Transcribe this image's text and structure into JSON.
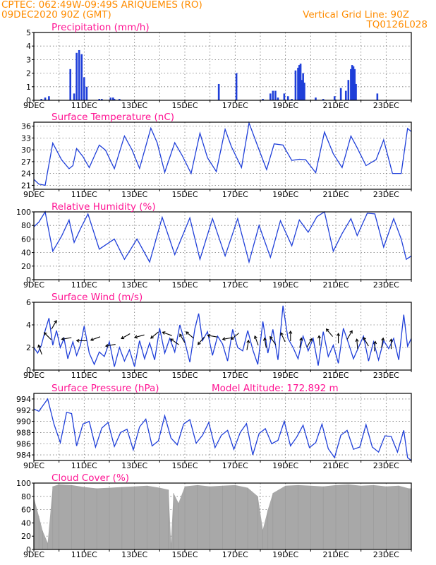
{
  "header": {
    "line1": "CPTEC:   062:49W-09:49S   ARIQUEMES (RO)",
    "line2": "09DEC2020 90Z (GMT)",
    "grid_note": "Vertical Grid Line: 90Z",
    "code": "TQ0126L028"
  },
  "colors": {
    "header": "#ff8c00",
    "title": "#ff1493",
    "series": "#1f3fd9",
    "cloud": "#a8a8a8",
    "arrow": "#000000"
  },
  "chart_data": [
    {
      "type": "bar",
      "title": "Precipitation (mm/h)",
      "xlim_days": [
        9,
        24.0
      ],
      "ylim": [
        0,
        5
      ],
      "yticks": [
        0,
        1,
        2,
        3,
        4,
        5
      ],
      "grid": true,
      "x_labels": [
        "9DEC",
        "11DEC",
        "13DEC",
        "15DEC",
        "17DEC",
        "19DEC",
        "21DEC",
        "23DEC"
      ],
      "x": [
        9.3,
        9.45,
        9.6,
        10.45,
        10.6,
        10.7,
        10.8,
        10.9,
        11.0,
        11.1,
        11.6,
        11.7,
        12.05,
        12.15,
        12.2,
        12.4,
        16.35,
        17.05,
        18.1,
        18.4,
        18.5,
        18.6,
        18.7,
        18.95,
        19.1,
        19.25,
        19.4,
        19.5,
        19.55,
        19.6,
        19.65,
        19.7,
        19.75,
        20.2,
        20.5,
        20.95,
        21.2,
        21.4,
        21.5,
        21.6,
        21.65,
        21.7,
        21.75,
        21.8,
        22.65
      ],
      "y": [
        0.1,
        0.2,
        0.3,
        2.3,
        0.5,
        3.5,
        3.7,
        3.4,
        1.7,
        1.0,
        0.1,
        0.1,
        0.2,
        0.2,
        0.1,
        0.1,
        1.2,
        2.0,
        0.1,
        0.5,
        0.7,
        0.7,
        0.2,
        0.5,
        0.3,
        0.1,
        2.2,
        2.4,
        2.6,
        2.7,
        1.5,
        2.0,
        1.3,
        0.2,
        0.1,
        0.3,
        0.9,
        0.7,
        1.5,
        2.3,
        2.6,
        2.5,
        2.3,
        1.2,
        0.5
      ]
    },
    {
      "type": "line",
      "title": "Surface Temperature (nC)",
      "xlim_days": [
        9,
        24.0
      ],
      "ylim": [
        20,
        37
      ],
      "yticks": [
        21,
        24,
        27,
        30,
        33,
        36
      ],
      "grid": true,
      "x_labels": [
        "9DEC",
        "11DEC",
        "13DEC",
        "15DEC",
        "17DEC",
        "19DEC",
        "21DEC",
        "23DEC"
      ],
      "x": [
        9.0,
        9.2,
        9.45,
        9.75,
        10.1,
        10.4,
        10.55,
        10.7,
        10.95,
        11.2,
        11.6,
        11.85,
        12.2,
        12.6,
        12.9,
        13.2,
        13.65,
        13.9,
        14.2,
        14.6,
        14.9,
        15.25,
        15.6,
        15.9,
        16.25,
        16.6,
        16.85,
        17.25,
        17.55,
        17.95,
        18.25,
        18.55,
        18.9,
        19.25,
        19.55,
        19.8,
        20.2,
        20.55,
        20.9,
        21.25,
        21.6,
        21.85,
        22.2,
        22.6,
        22.9,
        23.25,
        23.6,
        23.85,
        24.0
      ],
      "y": [
        22.5,
        21.3,
        21.0,
        31.7,
        27.5,
        25.2,
        26.0,
        30.3,
        28.3,
        25.5,
        31.2,
        29.9,
        25.2,
        33.5,
        30.0,
        25.3,
        35.5,
        31.8,
        24.3,
        31.8,
        28.5,
        24.0,
        34.2,
        28.0,
        24.5,
        35.2,
        30.8,
        25.5,
        36.8,
        30.0,
        25.0,
        31.5,
        31.2,
        27.3,
        27.6,
        27.5,
        24.2,
        34.5,
        29.0,
        25.5,
        33.5,
        30.5,
        26.0,
        27.5,
        32.5,
        24.0,
        24.0,
        35.4,
        34.6
      ]
    },
    {
      "type": "line",
      "title": "Relative Humidity (%)",
      "xlim_days": [
        9,
        24.0
      ],
      "ylim": [
        0,
        100
      ],
      "yticks": [
        0,
        20,
        40,
        60,
        80,
        100
      ],
      "grid": true,
      "x_labels": [
        "9DEC",
        "11DEC",
        "13DEC",
        "15DEC",
        "17DEC",
        "19DEC",
        "21DEC",
        "23DEC"
      ],
      "x": [
        9.0,
        9.2,
        9.45,
        9.75,
        10.1,
        10.4,
        10.6,
        10.85,
        11.15,
        11.6,
        12.2,
        12.6,
        13.1,
        13.6,
        14.1,
        14.6,
        15.2,
        15.6,
        16.1,
        16.6,
        17.1,
        17.55,
        17.95,
        18.4,
        18.8,
        19.25,
        19.55,
        19.9,
        20.25,
        20.55,
        20.9,
        21.25,
        21.6,
        21.85,
        22.25,
        22.55,
        22.9,
        23.3,
        23.6,
        23.8,
        24.0
      ],
      "y": [
        78,
        85,
        100,
        42,
        64,
        88,
        55,
        75,
        97,
        45,
        60,
        30,
        60,
        26,
        92,
        37,
        91,
        30,
        90,
        35,
        90,
        26,
        80,
        33,
        87,
        50,
        88,
        70,
        93,
        100,
        42,
        68,
        90,
        65,
        98,
        97,
        48,
        90,
        60,
        30,
        35
      ]
    },
    {
      "type": "line",
      "title": "Surface Wind (m/s)",
      "xlim_days": [
        9,
        24.0
      ],
      "ylim": [
        0,
        6
      ],
      "yticks": [
        0,
        2,
        4,
        6
      ],
      "grid": true,
      "x_labels": [
        "9DEC",
        "11DEC",
        "13DEC",
        "15DEC",
        "17DEC",
        "19DEC",
        "21DEC",
        "23DEC"
      ],
      "x": [
        9.0,
        9.15,
        9.3,
        9.45,
        9.6,
        9.75,
        9.9,
        10.05,
        10.2,
        10.35,
        10.55,
        10.7,
        10.85,
        11.0,
        11.2,
        11.4,
        11.6,
        11.8,
        12.0,
        12.2,
        12.4,
        12.6,
        12.8,
        13.0,
        13.2,
        13.4,
        13.6,
        13.8,
        14.0,
        14.2,
        14.4,
        14.6,
        14.8,
        15.0,
        15.2,
        15.4,
        15.55,
        15.7,
        15.9,
        16.1,
        16.3,
        16.5,
        16.7,
        16.9,
        17.1,
        17.3,
        17.5,
        17.7,
        17.9,
        18.1,
        18.3,
        18.5,
        18.7,
        18.9,
        19.1,
        19.3,
        19.5,
        19.7,
        19.9,
        20.1,
        20.3,
        20.5,
        20.7,
        20.9,
        21.1,
        21.3,
        21.5,
        21.7,
        21.9,
        22.1,
        22.3,
        22.5,
        22.7,
        22.9,
        23.1,
        23.3,
        23.5,
        23.7,
        23.85,
        24.0
      ],
      "y": [
        2.0,
        1.5,
        2.2,
        3.5,
        4.6,
        2.2,
        3.5,
        2.0,
        2.8,
        1.0,
        2.5,
        1.3,
        2.2,
        3.9,
        1.5,
        0.5,
        1.6,
        1.2,
        2.5,
        0.3,
        2.0,
        0.8,
        1.8,
        0.3,
        2.6,
        1.0,
        2.4,
        0.9,
        3.7,
        1.5,
        2.8,
        1.6,
        4.0,
        2.5,
        0.7,
        3.7,
        5.0,
        2.6,
        3.4,
        1.3,
        3.0,
        2.3,
        0.8,
        3.6,
        2.0,
        1.7,
        3.5,
        1.8,
        0.5,
        4.3,
        1.5,
        3.6,
        0.9,
        5.7,
        2.8,
        2.0,
        1.0,
        3.0,
        1.7,
        2.8,
        0.4,
        3.4,
        1.2,
        2.2,
        0.6,
        3.7,
        2.4,
        1.0,
        2.0,
        3.0,
        0.8,
        2.5,
        0.9,
        2.6,
        1.9,
        2.8,
        0.9,
        4.9,
        2.1,
        2.8
      ]
    },
    {
      "type": "line",
      "title": "Surface Pressure (hPa)",
      "subtitle": "Model Altitude: 172.892  m",
      "xlim_days": [
        9,
        24.0
      ],
      "ylim": [
        983,
        995
      ],
      "yticks": [
        984,
        986,
        988,
        990,
        992,
        994
      ],
      "grid": true,
      "x_labels": [
        "9DEC",
        "11DEC",
        "13DEC",
        "15DEC",
        "17DEC",
        "19DEC",
        "21DEC",
        "23DEC"
      ],
      "x": [
        9.0,
        9.2,
        9.55,
        9.8,
        10.05,
        10.3,
        10.5,
        10.7,
        10.95,
        11.2,
        11.45,
        11.7,
        11.95,
        12.2,
        12.45,
        12.7,
        12.95,
        13.2,
        13.45,
        13.7,
        13.95,
        14.2,
        14.45,
        14.7,
        14.95,
        15.2,
        15.45,
        15.7,
        15.95,
        16.2,
        16.45,
        16.7,
        16.95,
        17.2,
        17.45,
        17.7,
        17.95,
        18.2,
        18.45,
        18.7,
        18.95,
        19.2,
        19.45,
        19.7,
        19.95,
        20.2,
        20.45,
        20.7,
        20.95,
        21.2,
        21.45,
        21.7,
        21.95,
        22.2,
        22.45,
        22.7,
        22.95,
        23.2,
        23.45,
        23.7,
        23.85,
        24.0
      ],
      "y": [
        992.2,
        991.8,
        994.0,
        989.5,
        986.2,
        991.6,
        991.4,
        985.6,
        989.5,
        990.0,
        985.4,
        988.8,
        989.8,
        985.5,
        988.0,
        988.6,
        984.9,
        989.0,
        990.4,
        985.6,
        986.5,
        991.0,
        987.0,
        985.8,
        989.5,
        990.3,
        986.1,
        987.5,
        989.8,
        985.3,
        987.5,
        988.4,
        985.0,
        988.0,
        989.6,
        984.0,
        987.8,
        988.7,
        986.0,
        986.6,
        990.0,
        985.6,
        987.2,
        989.3,
        985.3,
        986.2,
        989.5,
        985.1,
        983.5,
        987.5,
        988.4,
        985.0,
        985.4,
        989.4,
        985.4,
        984.5,
        987.4,
        987.3,
        984.5,
        988.4,
        983.5,
        983.0
      ]
    },
    {
      "type": "bar",
      "title": "Cloud Cover (%)",
      "xlim_days": [
        9,
        24.0
      ],
      "ylim": [
        0,
        100
      ],
      "yticks": [
        0,
        20,
        40,
        60,
        80,
        100
      ],
      "grid": true,
      "x_labels": [
        "9DEC",
        "11DEC",
        "13DEC",
        "15DEC",
        "17DEC",
        "19DEC",
        "21DEC",
        "23DEC"
      ],
      "x": [
        9.0,
        9.2,
        9.35,
        9.55,
        9.75,
        10.0,
        10.5,
        11.0,
        11.5,
        12.0,
        12.5,
        13.0,
        13.5,
        14.0,
        14.35,
        14.45,
        14.55,
        14.75,
        15.0,
        15.5,
        16.0,
        16.5,
        17.0,
        17.5,
        17.9,
        18.1,
        18.3,
        18.5,
        19.0,
        19.5,
        20.0,
        20.5,
        21.0,
        21.5,
        22.0,
        22.5,
        23.0,
        23.5,
        23.9
      ],
      "y": [
        78,
        50,
        28,
        10,
        95,
        98,
        97,
        94,
        92,
        93,
        94,
        95,
        96,
        93,
        90,
        10,
        85,
        70,
        95,
        97,
        95,
        96,
        97,
        93,
        80,
        30,
        60,
        85,
        96,
        97,
        96,
        95,
        97,
        98,
        96,
        97,
        95,
        96,
        92
      ]
    }
  ]
}
